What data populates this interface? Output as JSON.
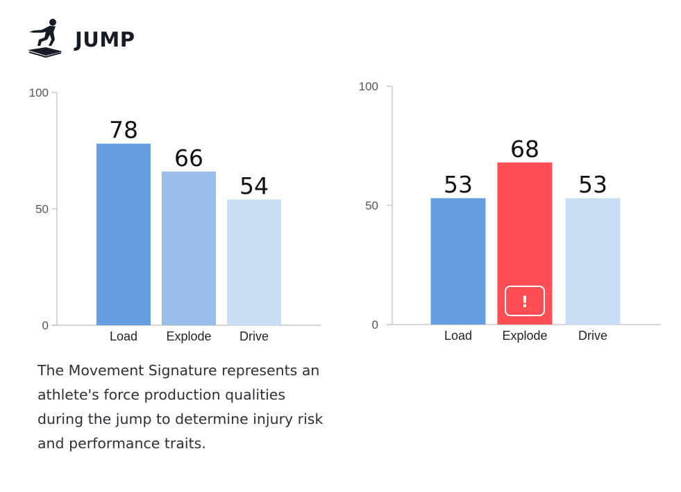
{
  "header": {
    "title": "JUMP",
    "icon": "jumping-athlete-icon"
  },
  "description": "The Movement Signature represents an athlete's force production qualities during the jump to determine injury risk and performance traits.",
  "chart_data": [
    {
      "type": "bar",
      "categories": [
        "Load",
        "Explode",
        "Drive"
      ],
      "values": [
        78,
        66,
        54
      ],
      "ylim": [
        0,
        100
      ],
      "yticks": [
        0,
        50,
        100
      ],
      "grid": false,
      "colors": [
        "#659fdf",
        "#97bfea",
        "#c9ddf5"
      ],
      "flags": [
        false,
        false,
        false
      ]
    },
    {
      "type": "bar",
      "categories": [
        "Load",
        "Explode",
        "Drive"
      ],
      "values": [
        53,
        68,
        53
      ],
      "ylim": [
        0,
        100
      ],
      "yticks": [
        0,
        50,
        100
      ],
      "grid": false,
      "colors": [
        "#659fdf",
        "#fc4e54",
        "#c9ddf5"
      ],
      "flags": [
        false,
        true,
        false
      ],
      "flag_text": "!"
    }
  ]
}
